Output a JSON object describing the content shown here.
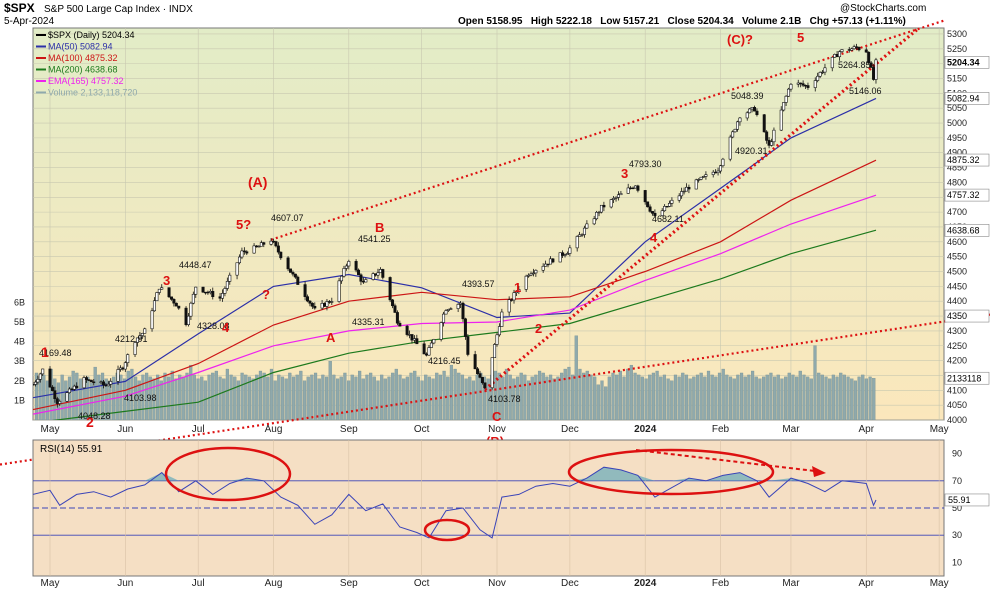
{
  "header": {
    "symbol": "$SPX",
    "name": "S&P 500 Large Cap Index",
    "exchange": "INDX",
    "date": "5-Apr-2024",
    "watermark": "@StockCharts.com",
    "ohlc_line": "Open 5158.95   High 5222.18   Low 5157.21   Close 5204.34   Volume 2.1B   Chg +57.13 (+1.11%)"
  },
  "colors": {
    "price_bg_top": "#e2ecc7",
    "price_bg_bottom": "#fbe7bc",
    "rsi_bg": "#f5dfc4",
    "ma50": "#2b2fa8",
    "ma100": "#cc1515",
    "ma200": "#1d7a1d",
    "ema165": "#ee22ee",
    "volume": "#8fa9ac",
    "candle": "#111111",
    "rsi_line": "#3a44b8",
    "annot": "#dd1111",
    "trend": "#dd1111"
  },
  "chart_data": [
    {
      "type": "candlestick",
      "panel": "price",
      "title": "$SPX (Daily) 5204.34",
      "legend": [
        {
          "label": "$SPX (Daily) 5204.34",
          "color": "#000000"
        },
        {
          "label": "MA(50) 5082.94",
          "color": "#2b2fa8"
        },
        {
          "label": "MA(100) 4875.32",
          "color": "#cc1515"
        },
        {
          "label": "MA(200) 4638.68",
          "color": "#1d7a1d"
        },
        {
          "label": "EMA(165) 4757.32",
          "color": "#ee22ee"
        },
        {
          "label": "Volume 2,133,118,720",
          "color": "#8fa9ac"
        }
      ],
      "x_ticks": [
        "May",
        "Jun",
        "Jul",
        "Aug",
        "Sep",
        "Oct",
        "Nov",
        "Dec",
        "2024",
        "Feb",
        "Mar",
        "Apr",
        "May"
      ],
      "y_ticks": [
        4000,
        4050,
        4100,
        4150,
        4200,
        4250,
        4300,
        4350,
        4400,
        4450,
        4500,
        4550,
        4600,
        4650,
        4700,
        4750,
        4800,
        4850,
        4900,
        4950,
        5000,
        5050,
        5100,
        5150,
        5200,
        5250,
        5300
      ],
      "ylim": [
        4000,
        5320
      ],
      "vol_ticks": [
        "1B",
        "2B",
        "3B",
        "4B",
        "5B",
        "6B"
      ],
      "last_price_labels": [
        "5204.34",
        "5082.94",
        "4875.32",
        "4757.32",
        "4638.68",
        "2133118",
        "4350"
      ],
      "price_path": [
        [
          "2023-04-24",
          4120
        ],
        [
          "2023-04-28",
          4169
        ],
        [
          "2023-05-04",
          4062
        ],
        [
          "2023-05-15",
          4136
        ],
        [
          "2023-05-24",
          4116
        ],
        [
          "2023-05-31",
          4180
        ],
        [
          "2023-06-05",
          4270
        ],
        [
          "2023-06-09",
          4300
        ],
        [
          "2023-06-15",
          4448
        ],
        [
          "2023-06-22",
          4390
        ],
        [
          "2023-06-26",
          4328
        ],
        [
          "2023-06-30",
          4450
        ],
        [
          "2023-07-10",
          4410
        ],
        [
          "2023-07-19",
          4565
        ],
        [
          "2023-07-25",
          4580
        ],
        [
          "2023-07-31",
          4607
        ],
        [
          "2023-08-08",
          4500
        ],
        [
          "2023-08-18",
          4370
        ],
        [
          "2023-08-25",
          4405
        ],
        [
          "2023-09-01",
          4541
        ],
        [
          "2023-09-07",
          4460
        ],
        [
          "2023-09-14",
          4505
        ],
        [
          "2023-09-21",
          4335
        ],
        [
          "2023-09-27",
          4275
        ],
        [
          "2023-10-03",
          4216
        ],
        [
          "2023-10-11",
          4376
        ],
        [
          "2023-10-17",
          4394
        ],
        [
          "2023-10-20",
          4225
        ],
        [
          "2023-10-27",
          4104
        ],
        [
          "2023-11-03",
          4360
        ],
        [
          "2023-11-14",
          4495
        ],
        [
          "2023-11-30",
          4568
        ],
        [
          "2023-12-14",
          4715
        ],
        [
          "2023-12-28",
          4793
        ],
        [
          "2024-01-05",
          4682
        ],
        [
          "2024-01-18",
          4780
        ],
        [
          "2024-01-31",
          4845
        ],
        [
          "2024-02-09",
          5026
        ],
        [
          "2024-02-15",
          5048
        ],
        [
          "2024-02-21",
          4920
        ],
        [
          "2024-03-01",
          5137
        ],
        [
          "2024-03-08",
          5123
        ],
        [
          "2024-03-21",
          5241
        ],
        [
          "2024-03-28",
          5254
        ],
        [
          "2024-04-01",
          5243
        ],
        [
          "2024-04-04",
          5147
        ],
        [
          "2024-04-05",
          5204
        ]
      ],
      "series": [
        {
          "name": "MA(50)",
          "points": [
            [
              "2023-04-24",
              4075
            ],
            [
              "2023-06-01",
              4130
            ],
            [
              "2023-07-01",
              4290
            ],
            [
              "2023-08-01",
              4450
            ],
            [
              "2023-09-01",
              4490
            ],
            [
              "2023-10-01",
              4445
            ],
            [
              "2023-11-01",
              4345
            ],
            [
              "2023-12-01",
              4360
            ],
            [
              "2024-01-01",
              4600
            ],
            [
              "2024-02-01",
              4780
            ],
            [
              "2024-03-01",
              4950
            ],
            [
              "2024-04-05",
              5083
            ]
          ]
        },
        {
          "name": "MA(100)",
          "points": [
            [
              "2023-04-24",
              4035
            ],
            [
              "2023-06-01",
              4100
            ],
            [
              "2023-07-01",
              4190
            ],
            [
              "2023-08-01",
              4320
            ],
            [
              "2023-09-01",
              4400
            ],
            [
              "2023-10-01",
              4430
            ],
            [
              "2023-11-01",
              4405
            ],
            [
              "2023-12-01",
              4415
            ],
            [
              "2024-01-01",
              4500
            ],
            [
              "2024-02-01",
              4600
            ],
            [
              "2024-03-01",
              4740
            ],
            [
              "2024-04-05",
              4875
            ]
          ]
        },
        {
          "name": "MA(200)",
          "points": [
            [
              "2023-04-24",
              3990
            ],
            [
              "2023-07-01",
              4060
            ],
            [
              "2023-08-01",
              4160
            ],
            [
              "2023-09-01",
              4225
            ],
            [
              "2023-10-01",
              4265
            ],
            [
              "2023-11-01",
              4295
            ],
            [
              "2023-12-01",
              4325
            ],
            [
              "2024-01-01",
              4400
            ],
            [
              "2024-02-01",
              4475
            ],
            [
              "2024-03-01",
              4560
            ],
            [
              "2024-04-05",
              4639
            ]
          ]
        },
        {
          "name": "EMA(165)",
          "points": [
            [
              "2023-04-24",
              4020
            ],
            [
              "2023-06-01",
              4080
            ],
            [
              "2023-07-01",
              4160
            ],
            [
              "2023-08-01",
              4250
            ],
            [
              "2023-09-01",
              4300
            ],
            [
              "2023-10-01",
              4325
            ],
            [
              "2023-11-01",
              4330
            ],
            [
              "2023-12-01",
              4370
            ],
            [
              "2024-01-01",
              4470
            ],
            [
              "2024-02-01",
              4560
            ],
            [
              "2024-03-01",
              4660
            ],
            [
              "2024-04-05",
              4757
            ]
          ]
        }
      ],
      "volume_b": [
        2.4,
        2.2,
        2.3,
        2.0,
        2.6,
        2.1,
        1.9,
        2.3,
        2.0,
        2.2,
        2.5,
        2.4,
        2.1,
        2.0,
        2.2,
        1.9,
        2.7,
        2.3,
        2.4,
        2.1,
        2.0,
        2.2,
        2.4,
        2.3,
        2.1,
        2.5,
        2.6,
        2.2,
        2.0,
        2.3,
        2.4,
        2.2,
        2.1,
        2.3,
        2.0,
        2.4,
        2.2,
        2.5,
        2.1,
        2.3,
        2.2,
        2.4,
        2.8,
        2.3,
        2.1,
        2.2,
        2.0,
        2.3,
        2.4,
        2.5,
        2.2,
        2.1,
        2.6,
        2.3,
        2.2,
        2.0,
        2.4,
        2.3,
        2.2,
        2.1,
        2.3,
        2.5,
        2.4,
        2.2,
        2.6,
        2.0,
        2.3,
        2.2,
        2.1,
        2.4,
        2.2,
        2.3,
        2.5,
        2.0,
        2.2,
        2.3,
        2.4,
        2.1,
        2.3,
        2.2,
        3.0,
        2.3,
        2.1,
        2.2,
        2.4,
        2.0,
        2.3,
        2.2,
        2.5,
        2.1,
        2.3,
        2.4,
        2.2,
        2.0,
        2.3,
        2.1,
        2.2,
        2.4,
        2.6,
        2.3,
        2.1,
        2.2,
        2.4,
        2.5,
        2.2,
        2.0,
        2.3,
        2.2,
        2.1,
        2.4,
        2.3,
        2.5,
        2.2,
        2.8,
        2.6,
        2.4,
        2.3,
        2.1,
        2.2,
        2.0,
        2.3,
        2.4,
        2.2,
        2.1,
        2.3,
        2.5,
        2.4,
        2.2,
        2.6,
        2.3,
        2.1,
        2.2,
        2.4,
        2.3,
        2.0,
        2.2,
        2.3,
        2.5,
        2.4,
        2.2,
        2.3,
        2.1,
        2.2,
        2.4,
        2.6,
        2.7,
        2.3,
        4.3,
        2.6,
        2.4,
        2.5,
        2.3,
        2.2,
        1.8,
        2.0,
        1.7,
        2.2,
        2.4,
        2.3,
        2.5,
        2.2,
        2.6,
        2.8,
        2.4,
        2.3,
        2.2,
        2.1,
        2.3,
        2.4,
        2.5,
        2.2,
        2.3,
        2.1,
        2.0,
        2.3,
        2.2,
        2.4,
        2.3,
        2.1,
        2.2,
        2.3,
        2.4,
        2.2,
        2.5,
        2.3,
        2.2,
        2.4,
        2.6,
        2.3,
        2.2,
        2.1,
        2.3,
        2.4,
        2.2,
        2.3,
        2.5,
        2.2,
        2.1,
        2.2,
        2.3,
        2.4,
        2.2,
        2.3,
        2.1,
        2.2,
        2.4,
        2.3,
        2.2,
        2.5,
        2.3,
        2.2,
        2.1,
        3.8,
        2.4,
        2.3,
        2.2,
        2.1,
        2.3,
        2.2,
        2.4,
        2.3,
        2.2,
        2.1,
        2.0,
        2.2,
        2.3,
        2.1,
        2.2,
        2.13
      ]
    },
    {
      "type": "line",
      "panel": "rsi",
      "title": "RSI(14) 55.91",
      "y_ticks": [
        10,
        30,
        50,
        70,
        90
      ],
      "ylim": [
        0,
        100
      ],
      "x_ticks": [
        "May",
        "Jun",
        "Jul",
        "Aug",
        "Sep",
        "Oct",
        "Nov",
        "Dec",
        "2024",
        "Feb",
        "Mar",
        "Apr",
        "May"
      ],
      "last_value_label": "55.91",
      "reference_lines": [
        70,
        50,
        30
      ],
      "series": [
        {
          "name": "RSI(14)",
          "points": [
            [
              "2023-04-24",
              60
            ],
            [
              "2023-05-01",
              63
            ],
            [
              "2023-05-05",
              52
            ],
            [
              "2023-05-12",
              60
            ],
            [
              "2023-05-19",
              62
            ],
            [
              "2023-05-26",
              58
            ],
            [
              "2023-06-02",
              64
            ],
            [
              "2023-06-09",
              67
            ],
            [
              "2023-06-16",
              76
            ],
            [
              "2023-06-23",
              62
            ],
            [
              "2023-06-30",
              70
            ],
            [
              "2023-07-07",
              60
            ],
            [
              "2023-07-14",
              68
            ],
            [
              "2023-07-21",
              72
            ],
            [
              "2023-07-28",
              70
            ],
            [
              "2023-08-04",
              58
            ],
            [
              "2023-08-11",
              52
            ],
            [
              "2023-08-18",
              38
            ],
            [
              "2023-08-25",
              45
            ],
            [
              "2023-09-01",
              60
            ],
            [
              "2023-09-08",
              48
            ],
            [
              "2023-09-15",
              53
            ],
            [
              "2023-09-22",
              36
            ],
            [
              "2023-09-29",
              32
            ],
            [
              "2023-10-04",
              28
            ],
            [
              "2023-10-11",
              48
            ],
            [
              "2023-10-18",
              50
            ],
            [
              "2023-10-25",
              34
            ],
            [
              "2023-10-30",
              28
            ],
            [
              "2023-11-03",
              58
            ],
            [
              "2023-11-10",
              60
            ],
            [
              "2023-11-17",
              66
            ],
            [
              "2023-11-24",
              68
            ],
            [
              "2023-12-01",
              66
            ],
            [
              "2023-12-08",
              72
            ],
            [
              "2023-12-15",
              80
            ],
            [
              "2023-12-22",
              78
            ],
            [
              "2023-12-29",
              74
            ],
            [
              "2024-01-05",
              58
            ],
            [
              "2024-01-12",
              65
            ],
            [
              "2024-01-19",
              72
            ],
            [
              "2024-01-26",
              70
            ],
            [
              "2024-02-02",
              74
            ],
            [
              "2024-02-09",
              76
            ],
            [
              "2024-02-16",
              70
            ],
            [
              "2024-02-21",
              58
            ],
            [
              "2024-03-01",
              72
            ],
            [
              "2024-03-08",
              68
            ],
            [
              "2024-03-15",
              62
            ],
            [
              "2024-03-22",
              70
            ],
            [
              "2024-03-28",
              69
            ],
            [
              "2024-04-01",
              68
            ],
            [
              "2024-04-04",
              52
            ],
            [
              "2024-04-05",
              55.91
            ]
          ]
        }
      ],
      "x_range": [
        "2023-04-24",
        "2024-05-03"
      ]
    }
  ],
  "annotations": [
    {
      "text": "(A)"
    },
    {
      "text": "1"
    },
    {
      "text": "2"
    },
    {
      "text": "3"
    },
    {
      "text": "4"
    },
    {
      "text": "5?"
    },
    {
      "text": "?"
    },
    {
      "text": "A"
    },
    {
      "text": "B"
    },
    {
      "text": "C"
    },
    {
      "text": "(B)"
    },
    {
      "text": "1"
    },
    {
      "text": "2"
    },
    {
      "text": "3"
    },
    {
      "text": "4"
    },
    {
      "text": "(C)?"
    },
    {
      "text": "5"
    }
  ],
  "price_labels": [
    {
      "text": "4169.48"
    },
    {
      "text": "4048.28"
    },
    {
      "text": "4212.91"
    },
    {
      "text": "4103.98"
    },
    {
      "text": "4448.47"
    },
    {
      "text": "4328.08"
    },
    {
      "text": "4607.07"
    },
    {
      "text": "4541.25"
    },
    {
      "text": "4335.31"
    },
    {
      "text": "4393.57"
    },
    {
      "text": "4216.45"
    },
    {
      "text": "4103.78"
    },
    {
      "text": "4793.30"
    },
    {
      "text": "4682.11"
    },
    {
      "text": "5048.39"
    },
    {
      "text": "4920.31"
    },
    {
      "text": "5264.85"
    },
    {
      "text": "5146.06"
    }
  ]
}
